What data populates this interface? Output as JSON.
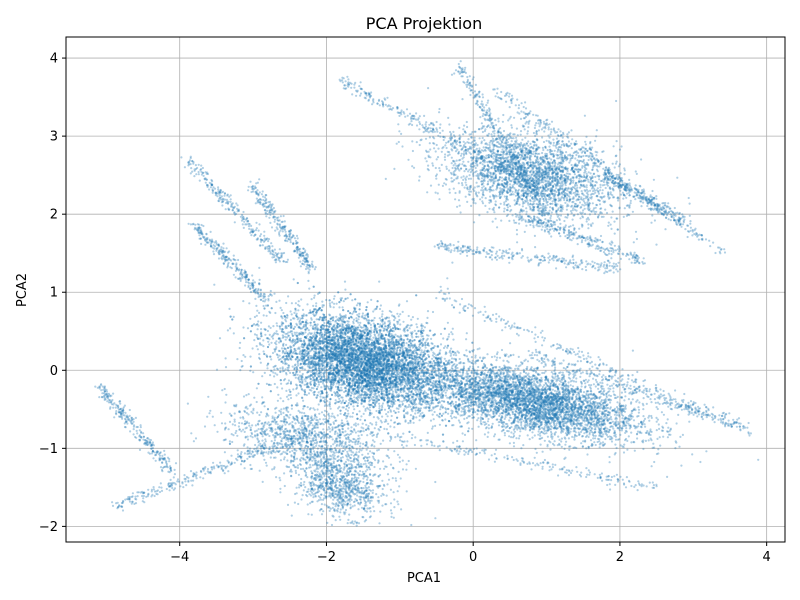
{
  "chart_data": {
    "type": "scatter",
    "title": "PCA Projektion",
    "xlabel": "PCA1",
    "ylabel": "PCA2",
    "xlim": [
      -5.55,
      4.25
    ],
    "ylim": [
      -2.2,
      4.27
    ],
    "xticks": [
      -4,
      -2,
      0,
      2,
      4
    ],
    "yticks": [
      -2,
      -1,
      0,
      1,
      2,
      3,
      4
    ],
    "xtick_labels": [
      "−4",
      "−2",
      "0",
      "2",
      "4"
    ],
    "ytick_labels": [
      "−2",
      "−1",
      "0",
      "1",
      "2",
      "3",
      "4"
    ],
    "grid": true,
    "point_color": "#1f77b4",
    "point_alpha": 0.35,
    "point_count_approx": 60000,
    "clusters": [
      {
        "center": [
          -1.5,
          0.1
        ],
        "spread": [
          1.0,
          0.5
        ],
        "weight": 0.42
      },
      {
        "center": [
          0.8,
          -0.4
        ],
        "spread": [
          1.2,
          0.35
        ],
        "weight": 0.28
      },
      {
        "center": [
          0.8,
          2.5
        ],
        "spread": [
          1.0,
          0.45
        ],
        "weight": 0.18
      },
      {
        "center": [
          -2.3,
          -0.9
        ],
        "spread": [
          0.9,
          0.35
        ],
        "weight": 0.07
      },
      {
        "center": [
          -1.8,
          -1.5
        ],
        "spread": [
          0.5,
          0.3
        ],
        "weight": 0.05
      }
    ],
    "streaks": [
      {
        "from": [
          -4.9,
          -1.75
        ],
        "to": [
          -2.2,
          -0.8
        ]
      },
      {
        "from": [
          -5.1,
          -0.2
        ],
        "to": [
          -4.1,
          -1.3
        ]
      },
      {
        "from": [
          -3.9,
          2.7
        ],
        "to": [
          -2.6,
          1.4
        ]
      },
      {
        "from": [
          -3.0,
          2.35
        ],
        "to": [
          -2.2,
          1.3
        ]
      },
      {
        "from": [
          -3.8,
          1.85
        ],
        "to": [
          -2.8,
          0.9
        ]
      },
      {
        "from": [
          -0.2,
          3.9
        ],
        "to": [
          1.0,
          2.0
        ]
      },
      {
        "from": [
          -1.8,
          3.7
        ],
        "to": [
          0.8,
          2.4
        ]
      },
      {
        "from": [
          0.3,
          3.6
        ],
        "to": [
          3.4,
          1.5
        ]
      },
      {
        "from": [
          -0.5,
          1.6
        ],
        "to": [
          2.0,
          1.3
        ]
      },
      {
        "from": [
          -0.5,
          1.0
        ],
        "to": [
          3.8,
          -0.8
        ]
      },
      {
        "from": [
          0.8,
          0.2
        ],
        "to": [
          3.6,
          -0.7
        ]
      },
      {
        "from": [
          -2.4,
          -0.6
        ],
        "to": [
          2.5,
          -1.5
        ]
      },
      {
        "from": [
          0.6,
          2.0
        ],
        "to": [
          2.3,
          1.4
        ]
      },
      {
        "from": [
          1.8,
          2.5
        ],
        "to": [
          2.9,
          1.9
        ]
      }
    ]
  }
}
